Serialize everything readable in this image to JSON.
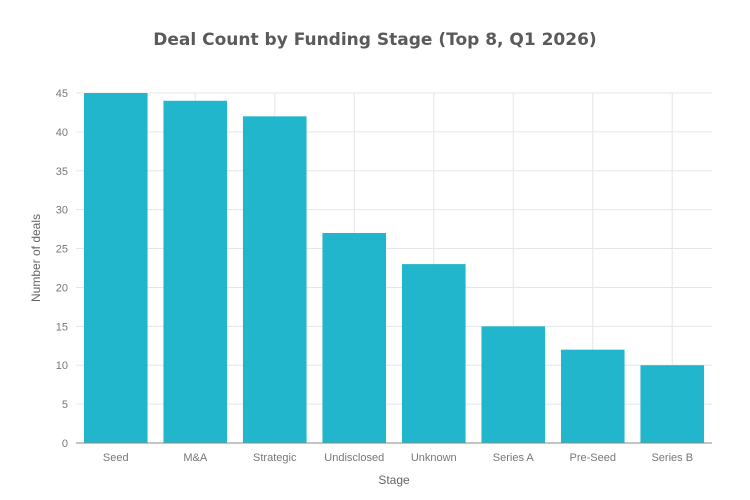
{
  "chart_data": {
    "type": "bar",
    "title": "Deal Count by Funding Stage (Top 8, Q1 2026)",
    "xlabel": "Stage",
    "ylabel": "Number of deals",
    "categories": [
      "Seed",
      "M&A",
      "Strategic",
      "Undisclosed",
      "Unknown",
      "Series A",
      "Pre-Seed",
      "Series B"
    ],
    "values": [
      45,
      44,
      42,
      27,
      23,
      15,
      12,
      10
    ],
    "ylim": [
      0,
      45
    ],
    "yticks": [
      0,
      5,
      10,
      15,
      20,
      25,
      30,
      35,
      40,
      45
    ],
    "grid": true,
    "legend": "none",
    "colors": {
      "bar": "#21b6cb"
    }
  }
}
